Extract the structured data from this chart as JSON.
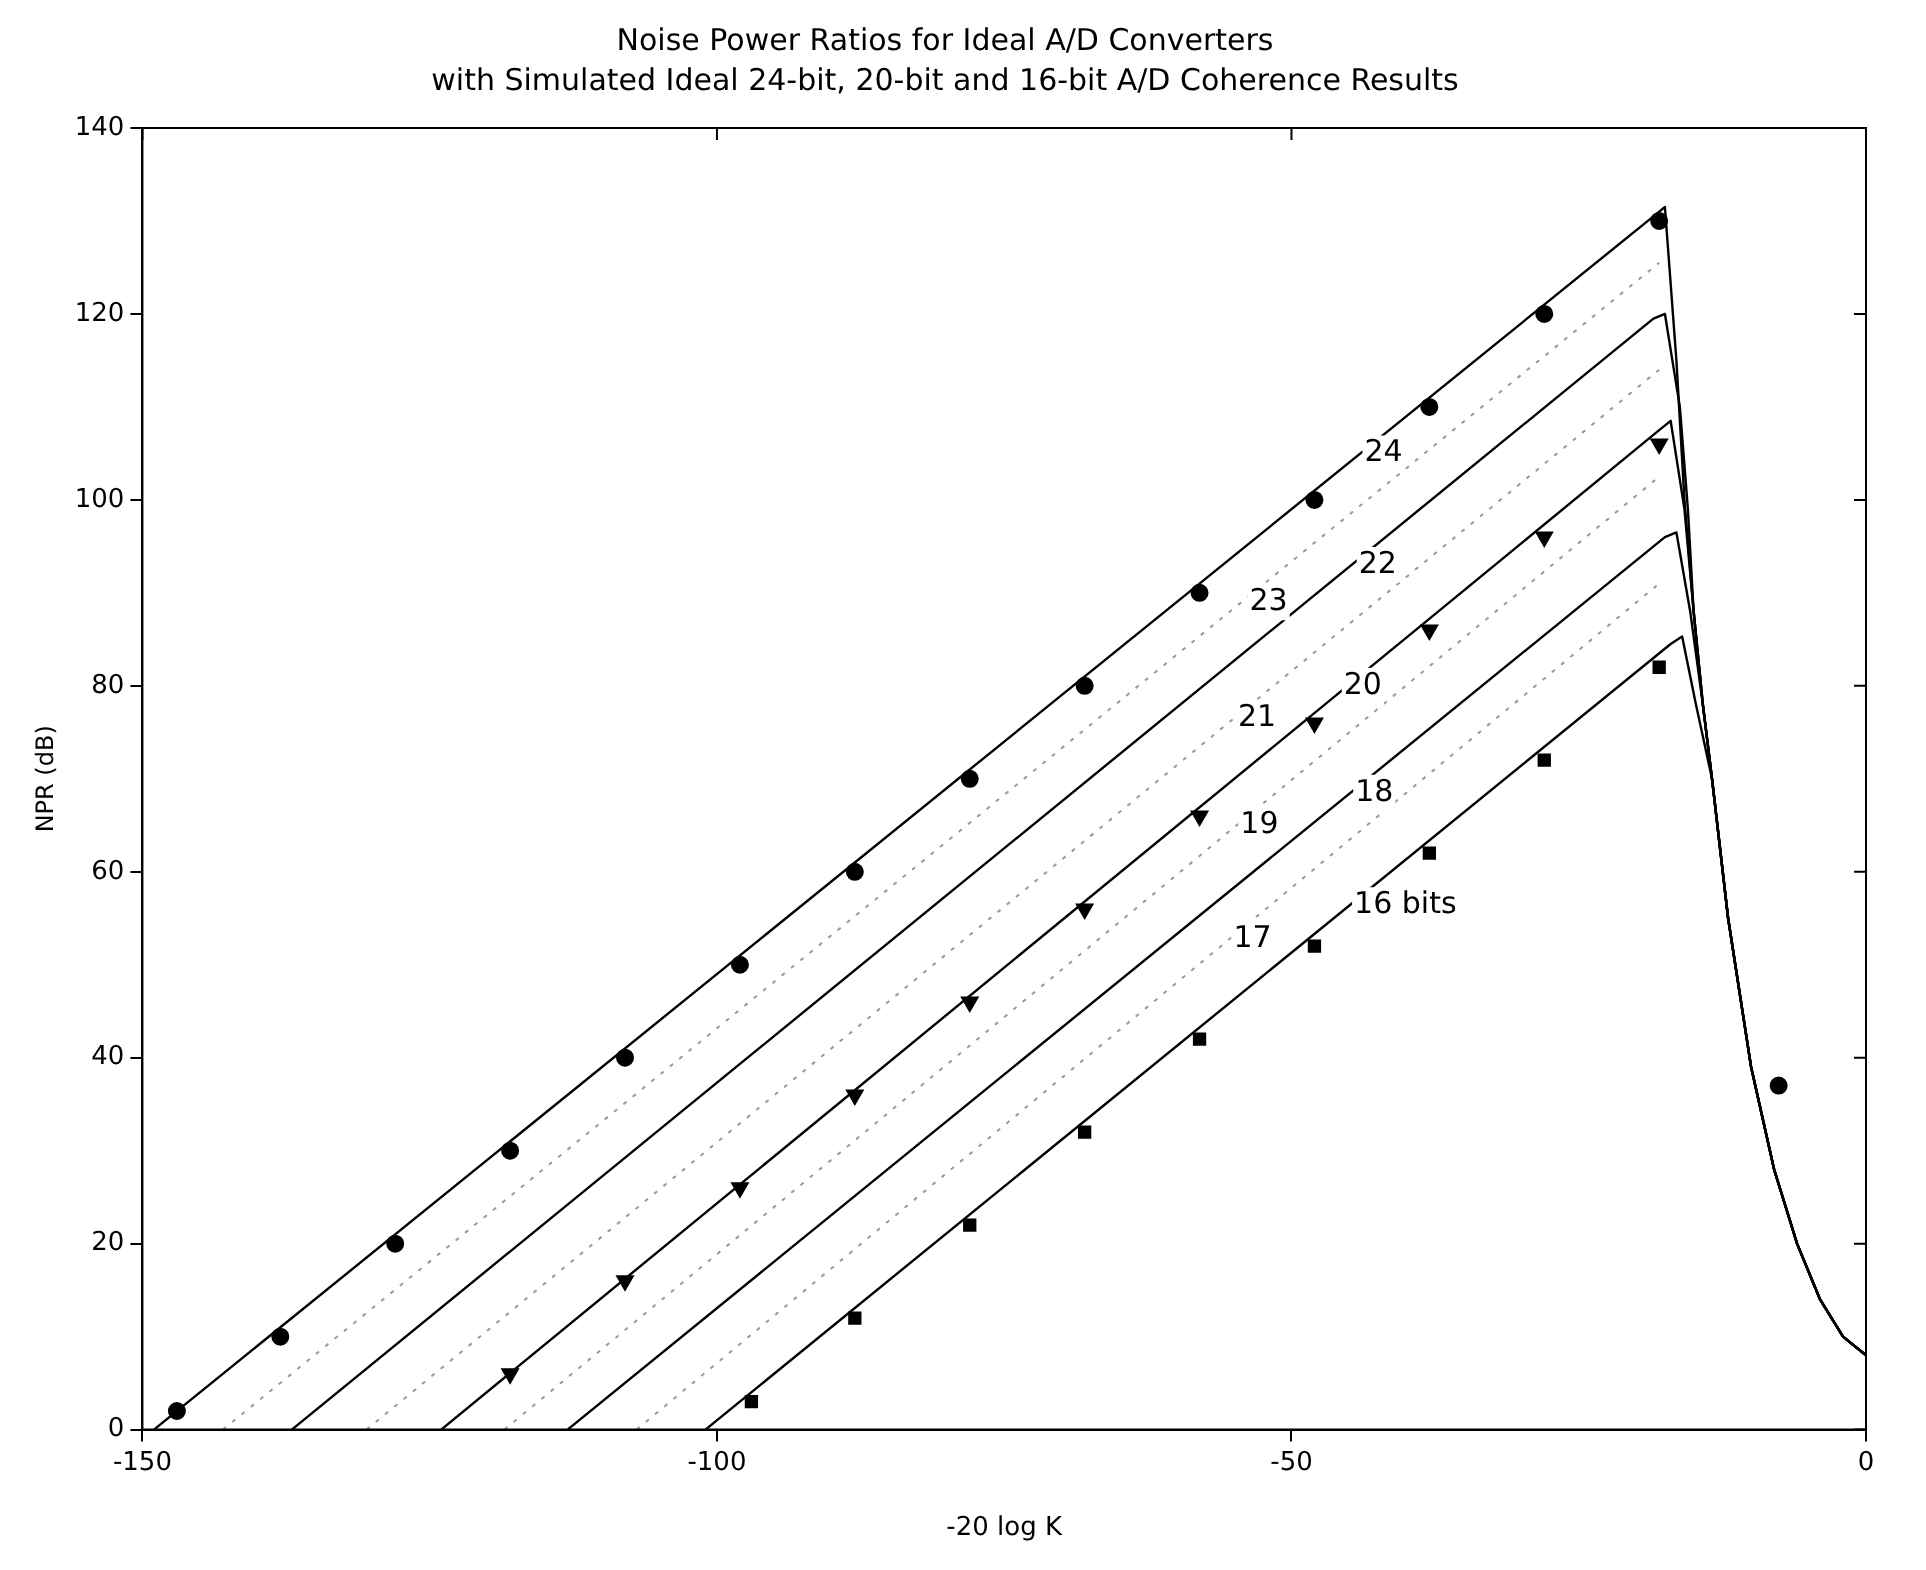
{
  "chart_data": {
    "type": "line",
    "title": "Noise Power Ratios for Ideal A/D Converters",
    "subtitle": "with Simulated Ideal 24-bit, 20-bit and 16-bit A/D Coherence Results",
    "xlabel": "-20 log K",
    "ylabel": "NPR (dB)",
    "xlim": [
      -150,
      0
    ],
    "xticks": [
      -150,
      -100,
      -50,
      0
    ],
    "ylim": [
      0,
      140
    ],
    "yticks": [
      0,
      20,
      40,
      60,
      80,
      100,
      120,
      140
    ],
    "grid": false,
    "legend": false,
    "series": [
      {
        "color": "#000000",
        "line_style": "solid",
        "marker": "none",
        "x": [
          -149,
          -18.5,
          -17.5,
          -16.5,
          -15.8,
          -15,
          -14.2,
          -13.4,
          -12,
          -10,
          -8,
          -6,
          -4,
          -2,
          0
        ],
        "values": [
          0,
          130.5,
          131.5,
          115,
          100,
          88,
          78,
          70,
          55,
          39,
          28,
          20,
          14,
          10,
          8
        ]
      },
      {
        "type": "line",
        "color": "#000000",
        "line_style": "solid",
        "marker": "none",
        "x": [
          -137,
          -18.5,
          -17.5,
          -16.2,
          -15.5,
          -15,
          -14.2,
          -13.4,
          -12,
          -10,
          -8,
          -6,
          -4,
          -2,
          0
        ],
        "values": [
          0,
          119.5,
          120,
          110,
          99,
          88,
          78,
          70,
          55,
          39,
          28,
          20,
          14,
          10,
          8
        ]
      },
      {
        "type": "line",
        "color": "#000000",
        "line_style": "solid",
        "marker": "none",
        "x": [
          -124,
          -18,
          -17,
          -15.8,
          -15,
          -14.2,
          -13.4,
          -12,
          -10,
          -8,
          -6,
          -4,
          -2,
          0
        ],
        "values": [
          0,
          107.5,
          108.5,
          99,
          88,
          78,
          70,
          55,
          39,
          28,
          20,
          14,
          10,
          8
        ]
      },
      {
        "type": "line",
        "color": "#000000",
        "line_style": "solid",
        "marker": "none",
        "x": [
          -113,
          -17.5,
          -16.5,
          -15.3,
          -14.2,
          -13.4,
          -12,
          -10,
          -8,
          -6,
          -4,
          -2,
          0
        ],
        "values": [
          0,
          96,
          96.5,
          88,
          78,
          70,
          55,
          39,
          28,
          20,
          14,
          10,
          8
        ]
      },
      {
        "type": "line",
        "color": "#000000",
        "line_style": "solid",
        "marker": "none",
        "x": [
          -101,
          -17,
          -16,
          -14.8,
          -13.4,
          -12,
          -10,
          -8,
          -6,
          -4,
          -2,
          0
        ],
        "values": [
          0,
          84.5,
          85.3,
          78,
          70,
          55,
          39,
          28,
          20,
          14,
          10,
          8
        ]
      },
      {
        "type": "line",
        "color": "#999999",
        "line_style": "dotted",
        "marker": "none",
        "x": [
          -143,
          -18
        ],
        "values": [
          0,
          125.5
        ]
      },
      {
        "type": "line",
        "color": "#999999",
        "line_style": "dotted",
        "marker": "none",
        "x": [
          -130.5,
          -18
        ],
        "values": [
          0,
          114
        ]
      },
      {
        "type": "line",
        "color": "#999999",
        "line_style": "dotted",
        "marker": "none",
        "x": [
          -118.5,
          -18
        ],
        "values": [
          0,
          102.5
        ]
      },
      {
        "type": "line",
        "color": "#999999",
        "line_style": "dotted",
        "marker": "none",
        "x": [
          -107,
          -18
        ],
        "values": [
          0,
          91
        ]
      },
      {
        "type": "scatter",
        "color": "#000000",
        "marker": "circle",
        "x": [
          -147,
          -138,
          -128,
          -118,
          -108,
          -98,
          -88,
          -78,
          -68,
          -58,
          -48,
          -38,
          -28,
          -18,
          -7.6
        ],
        "values": [
          2,
          10,
          20,
          30,
          40,
          50,
          60,
          70,
          80,
          90,
          100,
          110,
          120,
          130,
          37
        ]
      },
      {
        "type": "scatter",
        "color": "#000000",
        "marker": "triangle",
        "x": [
          -118,
          -108,
          -98,
          -88,
          -78,
          -68,
          -58,
          -48,
          -38,
          -28,
          -18
        ],
        "values": [
          6,
          16,
          26,
          36,
          46,
          56,
          66,
          76,
          86,
          96,
          106
        ]
      },
      {
        "type": "scatter",
        "color": "#000000",
        "marker": "square",
        "x": [
          -97,
          -88,
          -78,
          -68,
          -58,
          -48,
          -38,
          -28,
          -18
        ],
        "values": [
          3,
          12,
          22,
          32,
          42,
          52,
          62,
          72,
          82
        ]
      }
    ],
    "annotations": [
      {
        "text": "24",
        "x": -44,
        "y": 105
      },
      {
        "text": "23",
        "x": -54,
        "y": 89
      },
      {
        "text": "22",
        "x": -44.5,
        "y": 93
      },
      {
        "text": "21",
        "x": -55,
        "y": 76.5
      },
      {
        "text": "20",
        "x": -45.8,
        "y": 80
      },
      {
        "text": "19",
        "x": -54.8,
        "y": 65
      },
      {
        "text": "18",
        "x": -44.8,
        "y": 68.5
      },
      {
        "text": "17",
        "x": -55.4,
        "y": 52.7
      },
      {
        "text": "16 bits",
        "x": -44.9,
        "y": 56.4
      }
    ]
  }
}
